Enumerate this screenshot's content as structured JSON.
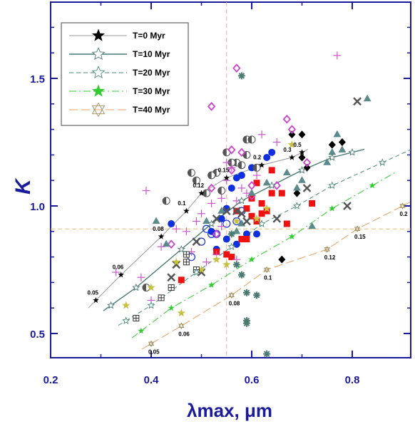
{
  "chart_data": {
    "type": "scatter",
    "xlabel": "λmax, μm",
    "ylabel": "K",
    "xlim": [
      0.2,
      0.9
    ],
    "ylim": [
      0.38,
      1.78
    ],
    "xticks": [
      "0.2",
      "0.4",
      "0.6",
      "0.8"
    ],
    "xtick_values": [
      0.2,
      0.4,
      0.6,
      0.8
    ],
    "yticks": [
      "0.5",
      "1.0",
      "1.5"
    ],
    "ytick_values": [
      0.5,
      1.0,
      1.5
    ],
    "grid": false,
    "legend_position": "top-left",
    "reference_lines": {
      "x": 0.55,
      "y": 0.91
    },
    "series": [
      {
        "name": "T=0 Myr",
        "color": "#999999",
        "marker_color": "#000000",
        "dash": "",
        "marker": "star-filled",
        "x": [
          0.29,
          0.34,
          0.42,
          0.47,
          0.5,
          0.55,
          0.62,
          0.68,
          0.7
        ],
        "y": [
          0.63,
          0.73,
          0.88,
          0.98,
          1.05,
          1.11,
          1.16,
          1.19,
          1.21
        ],
        "labels": [
          "0.05",
          "0.06",
          "0.08",
          "0.1",
          "0.12",
          "0.15",
          "0.2",
          "0.3",
          "0.5"
        ]
      },
      {
        "name": "T=10 Myr",
        "color": "#4a7a72",
        "marker_color": "#4a7a72",
        "dash": "",
        "marker": "star-open",
        "x": [
          0.32,
          0.37,
          0.46,
          0.52,
          0.58,
          0.64,
          0.7,
          0.76,
          0.8
        ],
        "y": [
          0.61,
          0.68,
          0.83,
          0.93,
          1.02,
          1.08,
          1.14,
          1.19,
          1.21
        ]
      },
      {
        "name": "T=20 Myr",
        "color": "#4a8a7a",
        "marker_color": "#4a8a7a",
        "dash": "6,4",
        "marker": "star-open",
        "x": [
          0.35,
          0.4,
          0.49,
          0.56,
          0.62,
          0.69,
          0.76,
          0.86
        ],
        "y": [
          0.55,
          0.61,
          0.74,
          0.84,
          0.93,
          1.0,
          1.08,
          1.17
        ]
      },
      {
        "name": "T=30 Myr",
        "color": "#33cc33",
        "marker_color": "#33cc33",
        "dash": "10,4,2,4",
        "marker": "star-filled",
        "x": [
          0.38,
          0.44,
          0.52,
          0.6,
          0.68,
          0.76,
          0.84
        ],
        "y": [
          0.51,
          0.6,
          0.69,
          0.79,
          0.88,
          0.99,
          1.08
        ]
      },
      {
        "name": "T=40 Myr",
        "color": "#e8a060",
        "marker_color": "#a09060",
        "dash": "12,5",
        "marker": "david-star",
        "x": [
          0.4,
          0.46,
          0.56,
          0.63,
          0.75,
          0.81,
          0.9
        ],
        "y": [
          0.46,
          0.53,
          0.65,
          0.75,
          0.83,
          0.91,
          1.0
        ],
        "labels": [
          "0.05",
          "0.06",
          "0.08",
          "0.1",
          "0.12",
          "0.15",
          "0.2"
        ]
      }
    ],
    "scatter_groups": [
      {
        "marker": "circle-filled",
        "color": "#1030e0",
        "points": [
          [
            0.44,
            0.93
          ],
          [
            0.52,
            0.9
          ],
          [
            0.54,
            0.95
          ],
          [
            0.55,
            0.99
          ],
          [
            0.56,
            1.07
          ],
          [
            0.57,
            1.11
          ],
          [
            0.58,
            1.12
          ],
          [
            0.59,
            0.89
          ],
          [
            0.6,
            1.15
          ],
          [
            0.61,
            0.89
          ],
          [
            0.63,
            1.19
          ],
          [
            0.64,
            1.21
          ],
          [
            0.55,
            0.87
          ],
          [
            0.57,
            0.85
          ],
          [
            0.53,
            0.83
          ]
        ]
      },
      {
        "marker": "circle-open",
        "color": "#1030e0",
        "points": [
          [
            0.48,
            0.8
          ],
          [
            0.51,
            0.91
          ],
          [
            0.52,
            0.89
          ],
          [
            0.53,
            0.89
          ],
          [
            0.55,
            0.93
          ],
          [
            0.57,
            0.94
          ],
          [
            0.5,
            0.86
          ],
          [
            0.58,
            0.98
          ]
        ]
      },
      {
        "marker": "square-filled",
        "color": "#ee1111",
        "points": [
          [
            0.46,
            0.71
          ],
          [
            0.53,
            0.82
          ],
          [
            0.55,
            0.81
          ],
          [
            0.56,
            0.8
          ],
          [
            0.58,
            0.87
          ],
          [
            0.59,
            0.99
          ],
          [
            0.6,
            1.03
          ],
          [
            0.61,
            0.94
          ],
          [
            0.62,
            0.97
          ],
          [
            0.63,
            0.98
          ],
          [
            0.64,
            1.05
          ],
          [
            0.66,
            1.05
          ],
          [
            0.67,
            0.93
          ],
          [
            0.6,
            0.96
          ],
          [
            0.62,
            1.01
          ],
          [
            0.64,
            1.14
          ],
          [
            0.72,
            1.01
          ],
          [
            0.57,
            0.98
          ],
          [
            0.59,
            0.87
          ],
          [
            0.61,
            1.09
          ]
        ]
      },
      {
        "marker": "half-circle",
        "color": "#555555",
        "points": [
          [
            0.43,
            1.02
          ],
          [
            0.48,
            1.13
          ],
          [
            0.49,
            1.1
          ],
          [
            0.51,
            1.05
          ],
          [
            0.53,
            1.13
          ],
          [
            0.54,
            1.06
          ],
          [
            0.57,
            1.17
          ],
          [
            0.58,
            1.16
          ],
          [
            0.59,
            1.2
          ],
          [
            0.59,
            1.26
          ],
          [
            0.6,
            1.26
          ],
          [
            0.61,
            1.15
          ],
          [
            0.56,
            1.17
          ],
          [
            0.55,
            1.21
          ],
          [
            0.52,
            1.12
          ],
          [
            0.39,
            0.68
          ]
        ]
      },
      {
        "marker": "diamond-filled",
        "color": "#000000",
        "points": [
          [
            0.68,
            1.28
          ],
          [
            0.7,
            1.28
          ],
          [
            0.7,
            1.19
          ],
          [
            0.71,
            1.15
          ],
          [
            0.69,
            1.05
          ],
          [
            0.76,
            1.24
          ],
          [
            0.78,
            1.25
          ],
          [
            0.66,
            0.79
          ]
        ]
      },
      {
        "marker": "diamond-open",
        "color": "#cc44cc",
        "points": [
          [
            0.44,
            0.85
          ],
          [
            0.53,
            0.89
          ],
          [
            0.52,
            1.07
          ],
          [
            0.57,
            1.54
          ],
          [
            0.56,
            1.14
          ],
          [
            0.58,
            1.21
          ],
          [
            0.6,
            1.04
          ],
          [
            0.67,
            1.34
          ],
          [
            0.68,
            1.3
          ],
          [
            0.71,
            1.17
          ],
          [
            0.56,
            1.22
          ],
          [
            0.52,
            1.39
          ],
          [
            0.65,
            1.08
          ],
          [
            0.6,
            1.08
          ]
        ]
      },
      {
        "marker": "triangle-filled",
        "color": "#5a8a8a",
        "points": [
          [
            0.41,
            0.94
          ],
          [
            0.43,
            0.85
          ],
          [
            0.51,
            0.94
          ],
          [
            0.54,
            0.98
          ],
          [
            0.57,
            0.9
          ],
          [
            0.58,
            0.93
          ],
          [
            0.6,
            1.05
          ],
          [
            0.63,
            1.09
          ],
          [
            0.69,
            1.07
          ],
          [
            0.72,
            0.92
          ],
          [
            0.75,
            1.17
          ],
          [
            0.76,
            1.21
          ],
          [
            0.77,
            1.28
          ],
          [
            0.78,
            1.22
          ],
          [
            0.83,
            1.42
          ],
          [
            0.7,
            1.1
          ],
          [
            0.67,
            1.13
          ]
        ]
      },
      {
        "marker": "x",
        "color": "#555555",
        "points": [
          [
            0.44,
            0.72
          ],
          [
            0.49,
            0.86
          ],
          [
            0.5,
            0.74
          ],
          [
            0.53,
            0.95
          ],
          [
            0.55,
            0.98
          ],
          [
            0.57,
            0.98
          ],
          [
            0.58,
            0.97
          ],
          [
            0.59,
            0.94
          ],
          [
            0.65,
            0.95
          ],
          [
            0.71,
            1.07
          ],
          [
            0.79,
            1.0
          ],
          [
            0.81,
            1.41
          ],
          [
            0.45,
            0.77
          ]
        ]
      },
      {
        "marker": "plus",
        "color": "#cc55cc",
        "points": [
          [
            0.33,
            0.74
          ],
          [
            0.38,
            0.72
          ],
          [
            0.4,
            0.63
          ],
          [
            0.39,
            1.06
          ],
          [
            0.42,
            0.84
          ],
          [
            0.45,
            0.91
          ],
          [
            0.47,
            0.9
          ],
          [
            0.48,
            0.82
          ],
          [
            0.49,
            0.94
          ],
          [
            0.5,
            0.97
          ],
          [
            0.52,
            1.01
          ],
          [
            0.54,
            0.92
          ],
          [
            0.54,
            1.03
          ],
          [
            0.55,
            1.1
          ],
          [
            0.55,
            1.17
          ],
          [
            0.56,
            1.15
          ],
          [
            0.57,
            1.02
          ],
          [
            0.58,
            1.07
          ],
          [
            0.59,
            1.05
          ],
          [
            0.61,
            1.12
          ],
          [
            0.62,
            1.28
          ],
          [
            0.65,
            1.25
          ],
          [
            0.77,
            1.59
          ],
          [
            0.51,
            0.78
          ],
          [
            0.53,
            0.81
          ],
          [
            0.57,
            0.79
          ]
        ]
      },
      {
        "marker": "asterisk",
        "color": "#4a7a72",
        "points": [
          [
            0.58,
            1.51
          ],
          [
            0.58,
            0.73
          ],
          [
            0.59,
            0.66
          ],
          [
            0.61,
            0.65
          ],
          [
            0.59,
            0.54
          ],
          [
            0.59,
            0.55
          ],
          [
            0.63,
            0.42
          ],
          [
            0.57,
            0.77
          ],
          [
            0.56,
            0.89
          ]
        ]
      },
      {
        "marker": "star-filled",
        "color": "#c8c040",
        "points": [
          [
            0.35,
            0.61
          ],
          [
            0.4,
            0.68
          ],
          [
            0.45,
            0.78
          ],
          [
            0.46,
            0.58
          ],
          [
            0.5,
            0.75
          ],
          [
            0.53,
            0.79
          ],
          [
            0.57,
            0.94
          ],
          [
            0.61,
            0.95
          ],
          [
            0.68,
            1.24
          ],
          [
            0.63,
            0.99
          ],
          [
            0.55,
            0.77
          ]
        ]
      },
      {
        "marker": "boxed-plus",
        "color": "#333333",
        "points": [
          [
            0.37,
            0.56
          ],
          [
            0.42,
            0.64
          ],
          [
            0.44,
            0.68
          ],
          [
            0.47,
            0.81
          ],
          [
            0.47,
            0.78
          ],
          [
            0.49,
            0.75
          ]
        ]
      }
    ]
  }
}
